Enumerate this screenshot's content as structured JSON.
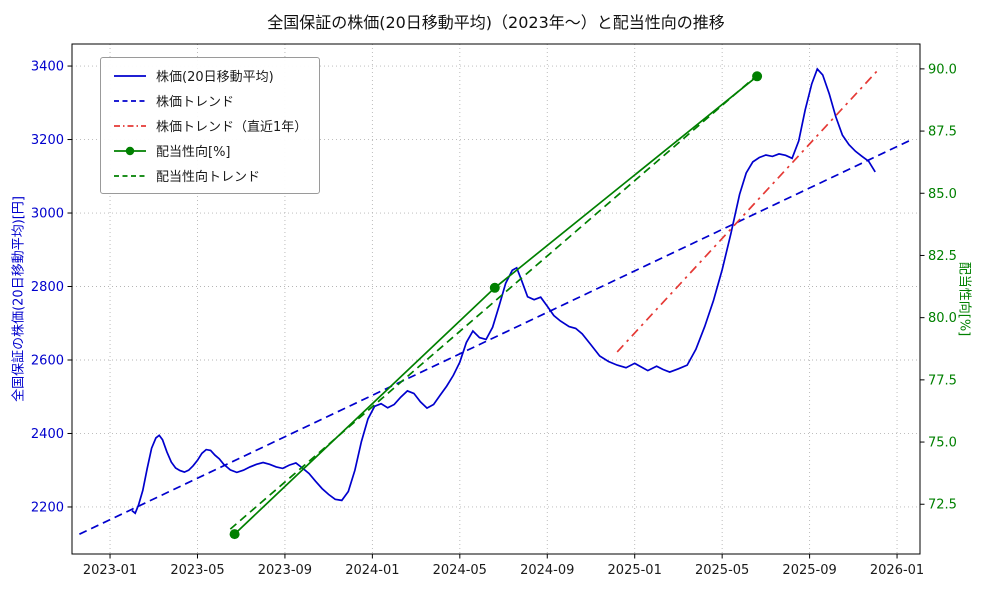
{
  "chart_data": {
    "type": "line",
    "title": "全国保証の株価(20日移動平均)（2023年〜）と配当性向の推移",
    "grid": true,
    "legend_position": "upper left",
    "x_axis": {
      "unit": "months since 2023-01",
      "lim": [
        -1.74,
        37.05
      ],
      "tick_positions": [
        0,
        4,
        8,
        12,
        16,
        20,
        24,
        28,
        32,
        36
      ],
      "tick_labels": [
        "2023-01",
        "2023-05",
        "2023-09",
        "2024-01",
        "2024-05",
        "2024-09",
        "2025-01",
        "2025-05",
        "2025-09",
        "2026-01"
      ]
    },
    "y_left": {
      "label": "全国保証の株価(20日移動平均)[円]",
      "lim": [
        2072,
        3460
      ],
      "ticks": [
        2200,
        2400,
        2600,
        2800,
        3000,
        3200,
        3400
      ],
      "tick_labels": [
        "2200",
        "2400",
        "2600",
        "2800",
        "3000",
        "3200",
        "3400"
      ],
      "color": "#0000cd"
    },
    "y_right": {
      "label": "配当性向[%]",
      "lim": [
        70.5,
        91.0
      ],
      "ticks": [
        72.5,
        75.0,
        77.5,
        80.0,
        82.5,
        85.0,
        87.5,
        90.0
      ],
      "tick_labels": [
        "72.5",
        "75.0",
        "77.5",
        "80.0",
        "82.5",
        "85.0",
        "87.5",
        "90.0"
      ],
      "color": "#008000"
    },
    "series": [
      {
        "name": "株価(20日移動平均)",
        "axis": "left",
        "color": "#0000cd",
        "style": "solid",
        "markers": false,
        "points": [
          [
            1.0,
            2190
          ],
          [
            1.15,
            2183
          ],
          [
            1.3,
            2205
          ],
          [
            1.5,
            2245
          ],
          [
            1.7,
            2305
          ],
          [
            1.9,
            2360
          ],
          [
            2.1,
            2388
          ],
          [
            2.25,
            2395
          ],
          [
            2.4,
            2383
          ],
          [
            2.6,
            2350
          ],
          [
            2.8,
            2322
          ],
          [
            3.0,
            2306
          ],
          [
            3.2,
            2299
          ],
          [
            3.4,
            2295
          ],
          [
            3.6,
            2300
          ],
          [
            3.8,
            2312
          ],
          [
            4.0,
            2327
          ],
          [
            4.2,
            2346
          ],
          [
            4.4,
            2356
          ],
          [
            4.6,
            2354
          ],
          [
            4.8,
            2341
          ],
          [
            5.0,
            2331
          ],
          [
            5.2,
            2316
          ],
          [
            5.5,
            2301
          ],
          [
            5.8,
            2294
          ],
          [
            6.1,
            2300
          ],
          [
            6.4,
            2309
          ],
          [
            6.7,
            2316
          ],
          [
            7.0,
            2321
          ],
          [
            7.3,
            2316
          ],
          [
            7.6,
            2309
          ],
          [
            7.9,
            2305
          ],
          [
            8.2,
            2314
          ],
          [
            8.5,
            2320
          ],
          [
            8.8,
            2306
          ],
          [
            9.1,
            2291
          ],
          [
            9.4,
            2270
          ],
          [
            9.7,
            2250
          ],
          [
            10.0,
            2234
          ],
          [
            10.3,
            2221
          ],
          [
            10.6,
            2218
          ],
          [
            10.9,
            2242
          ],
          [
            11.2,
            2300
          ],
          [
            11.5,
            2378
          ],
          [
            11.8,
            2440
          ],
          [
            12.1,
            2474
          ],
          [
            12.4,
            2481
          ],
          [
            12.7,
            2470
          ],
          [
            13.0,
            2479
          ],
          [
            13.3,
            2499
          ],
          [
            13.6,
            2516
          ],
          [
            13.9,
            2509
          ],
          [
            14.2,
            2486
          ],
          [
            14.5,
            2469
          ],
          [
            14.8,
            2479
          ],
          [
            15.1,
            2504
          ],
          [
            15.4,
            2529
          ],
          [
            15.7,
            2558
          ],
          [
            16.0,
            2594
          ],
          [
            16.3,
            2648
          ],
          [
            16.6,
            2679
          ],
          [
            16.9,
            2661
          ],
          [
            17.2,
            2656
          ],
          [
            17.5,
            2689
          ],
          [
            17.8,
            2748
          ],
          [
            18.1,
            2809
          ],
          [
            18.4,
            2844
          ],
          [
            18.6,
            2851
          ],
          [
            18.8,
            2821
          ],
          [
            19.1,
            2772
          ],
          [
            19.4,
            2764
          ],
          [
            19.7,
            2771
          ],
          [
            20.0,
            2746
          ],
          [
            20.3,
            2721
          ],
          [
            20.6,
            2706
          ],
          [
            21.0,
            2691
          ],
          [
            21.3,
            2686
          ],
          [
            21.6,
            2671
          ],
          [
            22.0,
            2641
          ],
          [
            22.4,
            2611
          ],
          [
            22.8,
            2596
          ],
          [
            23.2,
            2586
          ],
          [
            23.6,
            2579
          ],
          [
            24.0,
            2591
          ],
          [
            24.3,
            2581
          ],
          [
            24.6,
            2571
          ],
          [
            25.0,
            2583
          ],
          [
            25.3,
            2574
          ],
          [
            25.6,
            2567
          ],
          [
            26.0,
            2576
          ],
          [
            26.4,
            2586
          ],
          [
            26.8,
            2629
          ],
          [
            27.2,
            2691
          ],
          [
            27.6,
            2761
          ],
          [
            28.0,
            2846
          ],
          [
            28.4,
            2944
          ],
          [
            28.8,
            3051
          ],
          [
            29.1,
            3109
          ],
          [
            29.4,
            3139
          ],
          [
            29.7,
            3151
          ],
          [
            30.0,
            3158
          ],
          [
            30.3,
            3154
          ],
          [
            30.6,
            3161
          ],
          [
            30.9,
            3157
          ],
          [
            31.2,
            3149
          ],
          [
            31.5,
            3196
          ],
          [
            31.8,
            3281
          ],
          [
            32.1,
            3352
          ],
          [
            32.35,
            3392
          ],
          [
            32.6,
            3376
          ],
          [
            32.9,
            3324
          ],
          [
            33.2,
            3262
          ],
          [
            33.5,
            3212
          ],
          [
            33.8,
            3186
          ],
          [
            34.1,
            3168
          ],
          [
            34.4,
            3154
          ],
          [
            34.7,
            3141
          ],
          [
            35.0,
            3112
          ]
        ]
      },
      {
        "name": "株価トレンド",
        "axis": "left",
        "color": "#0000cd",
        "style": "dashed",
        "markers": false,
        "points": [
          [
            -1.4,
            2126
          ],
          [
            36.6,
            3198
          ]
        ]
      },
      {
        "name": "株価トレンド（直近1年）",
        "axis": "left",
        "color": "#e53935",
        "style": "dashdot",
        "markers": false,
        "points": [
          [
            23.2,
            2622
          ],
          [
            35.2,
            3394
          ]
        ]
      },
      {
        "name": "配当性向[%]",
        "axis": "right",
        "color": "#008000",
        "style": "solid",
        "markers": true,
        "points": [
          [
            5.7,
            71.3
          ],
          [
            17.6,
            81.2
          ],
          [
            29.6,
            89.7
          ]
        ]
      },
      {
        "name": "配当性向トレンド",
        "axis": "right",
        "color": "#008000",
        "style": "dashed",
        "markers": false,
        "points": [
          [
            5.5,
            71.5
          ],
          [
            29.8,
            89.9
          ]
        ]
      }
    ]
  }
}
